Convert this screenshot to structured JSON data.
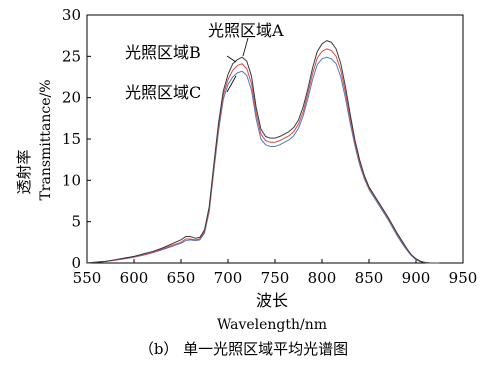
{
  "chart_data": {
    "type": "line",
    "xlabel_cn": "波长",
    "xlabel_en": "Wavelength/nm",
    "ylabel_cn": "透射率",
    "ylabel_en": "Transmittance/%",
    "xlim": [
      550,
      950
    ],
    "ylim": [
      0,
      30
    ],
    "xticks": [
      550,
      600,
      650,
      700,
      750,
      800,
      850,
      900,
      950
    ],
    "yticks": [
      0,
      5,
      10,
      15,
      20,
      25,
      30
    ],
    "grid": false,
    "series": [
      {
        "name": "光照区域A",
        "color": "#3a3a3a",
        "x": [
          550,
          560,
          570,
          580,
          590,
          600,
          610,
          620,
          630,
          640,
          650,
          655,
          660,
          665,
          670,
          675,
          680,
          685,
          690,
          695,
          700,
          705,
          710,
          715,
          720,
          725,
          730,
          735,
          740,
          745,
          750,
          755,
          760,
          765,
          770,
          775,
          780,
          785,
          790,
          795,
          800,
          805,
          810,
          815,
          820,
          825,
          830,
          835,
          840,
          845,
          850,
          855,
          860,
          865,
          870,
          875,
          880,
          885,
          890,
          895,
          900,
          905,
          910,
          915,
          920,
          925
        ],
        "values": [
          0.0,
          0.1,
          0.2,
          0.4,
          0.6,
          0.8,
          1.1,
          1.4,
          1.8,
          2.3,
          2.8,
          3.2,
          3.2,
          3.0,
          3.1,
          4.0,
          6.8,
          12.0,
          17.0,
          20.8,
          22.8,
          24.1,
          24.6,
          24.9,
          24.4,
          22.6,
          18.8,
          16.2,
          15.3,
          15.1,
          15.1,
          15.3,
          15.6,
          15.9,
          16.4,
          17.3,
          18.9,
          21.1,
          23.6,
          25.6,
          26.5,
          26.9,
          26.7,
          25.9,
          24.1,
          21.3,
          18.0,
          14.9,
          12.5,
          10.6,
          9.2,
          8.3,
          7.4,
          6.5,
          5.6,
          4.6,
          3.6,
          2.7,
          1.8,
          1.0,
          0.5,
          0.2,
          0.05,
          0.0,
          0.0,
          0.0
        ]
      },
      {
        "name": "光照区域B",
        "color": "#d64a4a",
        "x": [
          550,
          560,
          570,
          580,
          590,
          600,
          610,
          620,
          630,
          640,
          650,
          655,
          660,
          665,
          670,
          675,
          680,
          685,
          690,
          695,
          700,
          705,
          710,
          715,
          720,
          725,
          730,
          735,
          740,
          745,
          750,
          755,
          760,
          765,
          770,
          775,
          780,
          785,
          790,
          795,
          800,
          805,
          810,
          815,
          820,
          825,
          830,
          835,
          840,
          845,
          850,
          855,
          860,
          865,
          870,
          875,
          880,
          885,
          890,
          895,
          900,
          905,
          910,
          915,
          920,
          925
        ],
        "values": [
          0.0,
          0.1,
          0.2,
          0.35,
          0.55,
          0.75,
          1.0,
          1.3,
          1.7,
          2.1,
          2.5,
          2.9,
          2.9,
          2.8,
          2.9,
          3.8,
          6.5,
          11.6,
          16.5,
          20.3,
          22.2,
          23.3,
          23.9,
          24.1,
          23.5,
          21.7,
          18.1,
          15.6,
          14.8,
          14.6,
          14.6,
          14.8,
          15.1,
          15.4,
          15.9,
          16.8,
          18.3,
          20.5,
          22.9,
          24.8,
          25.6,
          25.9,
          25.7,
          25.0,
          23.3,
          20.6,
          17.5,
          14.6,
          12.2,
          10.4,
          9.1,
          8.2,
          7.3,
          6.4,
          5.5,
          4.5,
          3.5,
          2.6,
          1.7,
          1.0,
          0.5,
          0.2,
          0.05,
          0.0,
          0.0,
          0.0
        ]
      },
      {
        "name": "光照区域C",
        "color": "#5577bb",
        "x": [
          550,
          560,
          570,
          580,
          590,
          600,
          610,
          620,
          630,
          640,
          650,
          655,
          660,
          665,
          670,
          675,
          680,
          685,
          690,
          695,
          700,
          705,
          710,
          715,
          720,
          725,
          730,
          735,
          740,
          745,
          750,
          755,
          760,
          765,
          770,
          775,
          780,
          785,
          790,
          795,
          800,
          805,
          810,
          815,
          820,
          825,
          830,
          835,
          840,
          845,
          850,
          855,
          860,
          865,
          870,
          875,
          880,
          885,
          890,
          895,
          900,
          905,
          910,
          915,
          920,
          925
        ],
        "values": [
          0.0,
          0.1,
          0.2,
          0.35,
          0.5,
          0.7,
          0.95,
          1.25,
          1.6,
          2.0,
          2.4,
          2.7,
          2.8,
          2.7,
          2.8,
          3.6,
          6.2,
          11.2,
          16.0,
          19.8,
          21.6,
          22.5,
          23.0,
          23.2,
          22.7,
          20.9,
          17.4,
          15.0,
          14.3,
          14.1,
          14.1,
          14.3,
          14.6,
          14.9,
          15.4,
          16.3,
          17.8,
          19.9,
          22.2,
          24.0,
          24.7,
          24.9,
          24.7,
          24.1,
          22.5,
          19.9,
          16.9,
          14.2,
          11.9,
          10.2,
          8.9,
          8.0,
          7.1,
          6.2,
          5.3,
          4.3,
          3.3,
          2.4,
          1.6,
          0.9,
          0.4,
          0.15,
          0.05,
          0.0,
          0.0,
          0.0
        ]
      }
    ],
    "annotations": [
      {
        "text": "光照区域A",
        "target": 0
      },
      {
        "text": "光照区域B",
        "target": 1
      },
      {
        "text": "光照区域C",
        "target": 2
      }
    ]
  },
  "caption": "（b） 单一光照区域平均光谱图"
}
